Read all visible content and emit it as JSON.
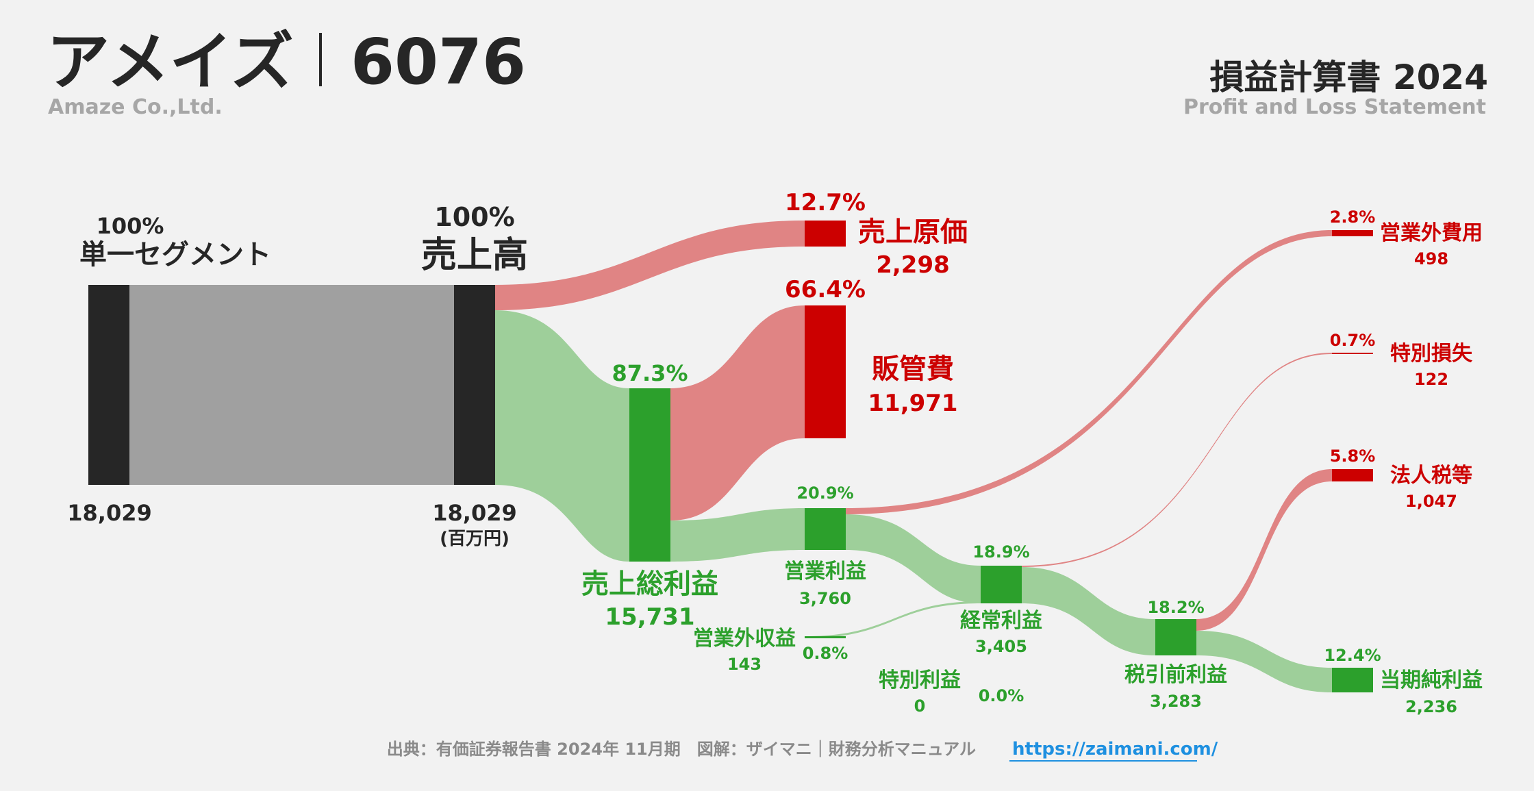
{
  "header": {
    "company": "アメイズ",
    "code": "6076",
    "company_en": "Amaze Co.,Ltd.",
    "title": "損益計算書 2024",
    "title_en": "Profit and Loss Statement"
  },
  "unit": "(百万円)",
  "colors": {
    "background": "#f2f2f2",
    "node_dark": "#262626",
    "node_green": "#2ca02c",
    "node_red": "#cc0000",
    "flow_gray": "#a0a0a0",
    "flow_green": "#9ecf9a",
    "flow_red": "#e08484",
    "link": "#1e90e0"
  },
  "nodes": {
    "segment": {
      "name": "単一セグメント",
      "pct": "100%",
      "value": "18,029"
    },
    "revenue": {
      "name": "売上高",
      "pct": "100%",
      "value": "18,029"
    },
    "cogs": {
      "name": "売上原価",
      "pct": "12.7%",
      "value": "2,298"
    },
    "gross": {
      "name": "売上総利益",
      "pct": "87.3%",
      "value": "15,731"
    },
    "sga": {
      "name": "販管費",
      "pct": "66.4%",
      "value": "11,971"
    },
    "op": {
      "name": "営業利益",
      "pct": "20.9%",
      "value": "3,760"
    },
    "nonop_income": {
      "name": "営業外収益",
      "pct": "0.8%",
      "value": "143"
    },
    "nonop_expense": {
      "name": "営業外費用",
      "pct": "2.8%",
      "value": "498"
    },
    "ordinary": {
      "name": "経常利益",
      "pct": "18.9%",
      "value": "3,405"
    },
    "special_gain": {
      "name": "特別利益",
      "pct": "0.0%",
      "value": "0"
    },
    "special_loss": {
      "name": "特別損失",
      "pct": "0.7%",
      "value": "122"
    },
    "pretax": {
      "name": "税引前利益",
      "pct": "18.2%",
      "value": "3,283"
    },
    "tax": {
      "name": "法人税等",
      "pct": "5.8%",
      "value": "1,047"
    },
    "net": {
      "name": "当期純利益",
      "pct": "12.4%",
      "value": "2,236"
    }
  },
  "footer": {
    "source": "出典：有価証券報告書 2024年 11月期　図解：ザイマニ｜財務分析マニュアル",
    "url": "https://zaimani.com/"
  }
}
